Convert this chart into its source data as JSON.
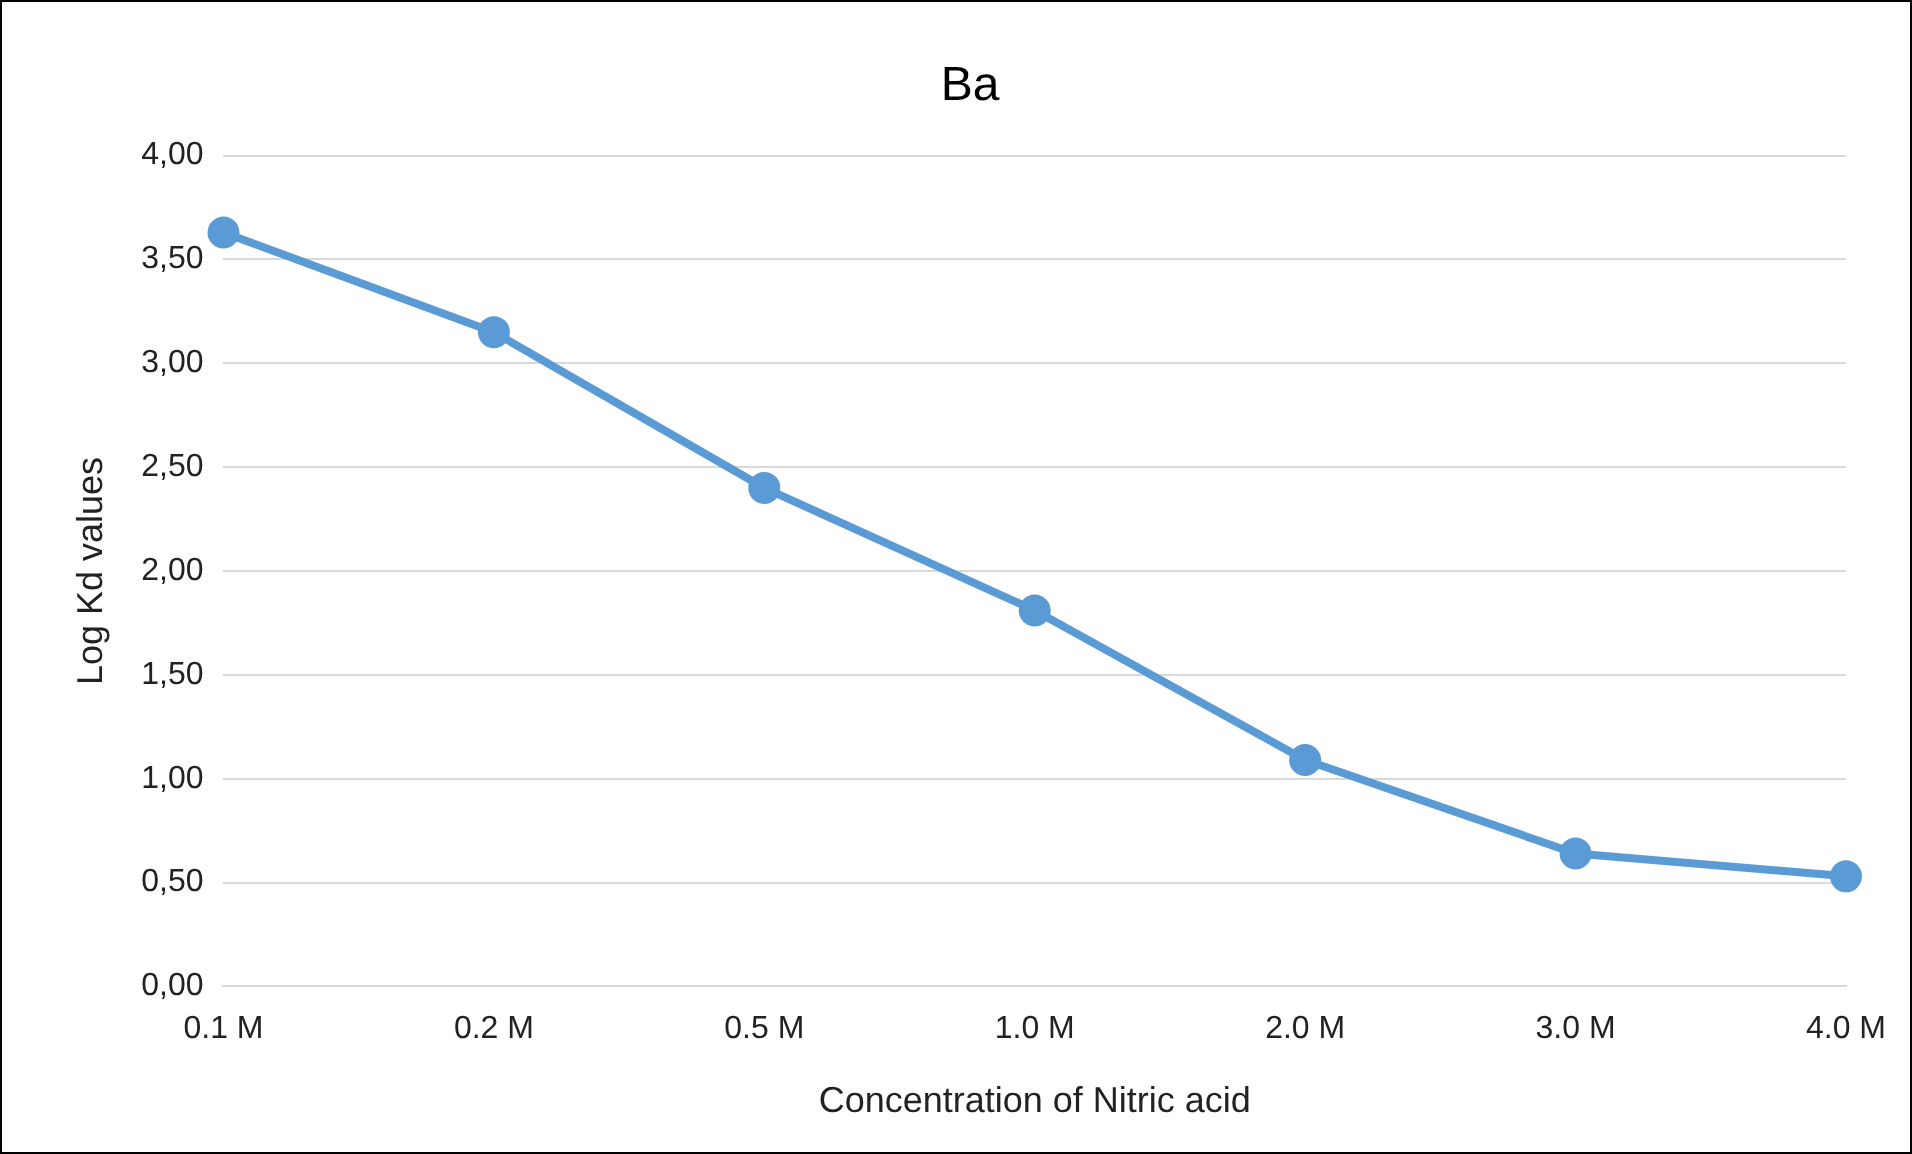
{
  "chart_data": {
    "type": "line",
    "title": "Ba",
    "xlabel": "Concentration of Nitric acid",
    "ylabel": "Log Kd values",
    "categories": [
      "0.1 M",
      "0.2 M",
      "0.5 M",
      "1.0 M",
      "2.0 M",
      "3.0 M",
      "4.0 M"
    ],
    "series": [
      {
        "color": "#5b9bd5",
        "values": [
          3.63,
          3.15,
          2.4,
          1.81,
          1.09,
          0.64,
          0.53
        ]
      }
    ],
    "ylim": [
      0,
      4
    ],
    "yticks": [
      {
        "value": 0,
        "label": "0,00"
      },
      {
        "value": 0.5,
        "label": "0,50"
      },
      {
        "value": 1,
        "label": "1,00"
      },
      {
        "value": 1.5,
        "label": "1,50"
      },
      {
        "value": 2,
        "label": "2,00"
      },
      {
        "value": 2.5,
        "label": "2,50"
      },
      {
        "value": 3,
        "label": "3,00"
      },
      {
        "value": 3.5,
        "label": "3,50"
      },
      {
        "value": 4,
        "label": "4,00"
      }
    ],
    "grid": "y",
    "legend": false,
    "marker": "circle",
    "line_style": "solid"
  }
}
